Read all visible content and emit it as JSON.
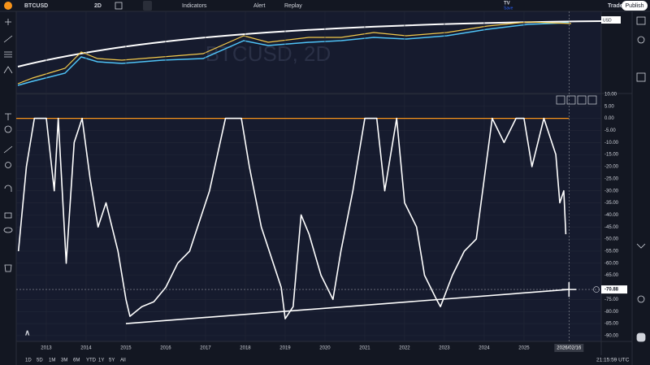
{
  "toolbar": {
    "symbol": "BTCUSD",
    "interval": "2D",
    "indicators": "Indicators",
    "alert": "Alert",
    "replay": "Replay",
    "tv": "TV",
    "save": "Save",
    "trade": "Trade",
    "publish": "Publish"
  },
  "watermark": "BTCUSD, 2D",
  "price_axis_label": "USD",
  "chart_data": {
    "type": "line",
    "xlim": [
      2012.245,
      2026.94
    ],
    "xticks": [
      2013,
      2014,
      2015,
      2016,
      2017,
      2018,
      2019,
      2020,
      2021,
      2022,
      2023,
      2024,
      2025
    ],
    "ylim": [
      -92.4,
      10.3
    ],
    "yticks": [
      {
        "value": 10,
        "label": "10.00"
      },
      {
        "value": 5,
        "label": "5.00"
      },
      {
        "value": 0,
        "label": "0.00"
      },
      {
        "value": -5,
        "label": "-5.00"
      },
      {
        "value": -10,
        "label": "-10.00"
      },
      {
        "value": -15,
        "label": "-15.00"
      },
      {
        "value": -20,
        "label": "-20.00"
      },
      {
        "value": -25,
        "label": "-25.00"
      },
      {
        "value": -30,
        "label": "-30.00"
      },
      {
        "value": -35,
        "label": "-35.00"
      },
      {
        "value": -40,
        "label": "-40.00"
      },
      {
        "value": -45,
        "label": "-45.00"
      },
      {
        "value": -50,
        "label": "-50.00"
      },
      {
        "value": -55,
        "label": "-55.00"
      },
      {
        "value": -60,
        "label": "-60.00"
      },
      {
        "value": -65,
        "label": "-65.00"
      },
      {
        "value": -75,
        "label": "-75.00"
      },
      {
        "value": -80,
        "label": "-80.00"
      },
      {
        "value": -85,
        "label": "-85.00"
      },
      {
        "value": -90,
        "label": "-90.00"
      }
    ],
    "grid": true,
    "series": [
      {
        "color": "#ffffff",
        "x": [
          2012.3,
          2012.5,
          2012.7,
          2013.0,
          2013.2,
          2013.3,
          2013.5,
          2013.7,
          2013.9,
          2014.1,
          2014.3,
          2014.5,
          2014.8,
          2015.0,
          2015.1,
          2015.4,
          2015.7,
          2016.0,
          2016.3,
          2016.6,
          2016.9,
          2017.1,
          2017.3,
          2017.5,
          2017.9,
          2018.1,
          2018.4,
          2018.6,
          2018.9,
          2019.0,
          2019.2,
          2019.4,
          2019.6,
          2019.9,
          2020.2,
          2020.4,
          2020.7,
          2020.9,
          2021.0,
          2021.3,
          2021.5,
          2021.8,
          2022.0,
          2022.3,
          2022.5,
          2022.8,
          2022.9,
          2023.2,
          2023.5,
          2023.8,
          2024.0,
          2024.2,
          2024.5,
          2024.8,
          2025.0,
          2025.2,
          2025.5,
          2025.8,
          2025.9,
          2026.0,
          2026.05
        ],
        "values": [
          -55,
          -20,
          0,
          0,
          -30,
          0,
          -60,
          -10,
          0,
          -25,
          -45,
          -35,
          -55,
          -75,
          -82,
          -78,
          -76,
          -70,
          -60,
          -55,
          -40,
          -30,
          -15,
          0,
          0,
          -20,
          -45,
          -55,
          -70,
          -83,
          -78,
          -40,
          -48,
          -65,
          -75,
          -55,
          -30,
          -10,
          0,
          0,
          -30,
          0,
          -35,
          -45,
          -65,
          -75,
          -78,
          -65,
          -55,
          -50,
          -25,
          0,
          -10,
          0,
          0,
          -20,
          0,
          -15,
          -35,
          -30,
          -48
        ]
      }
    ],
    "hline": {
      "value": 0,
      "color": "#f7931a"
    },
    "trendline": {
      "x": [
        2015.0,
        2026.13
      ],
      "values": [
        -85,
        -70.88
      ],
      "color": "#ffffff"
    },
    "crosshair": {
      "x": 2026.13,
      "x_label": "2026/02/16",
      "value": -70.88,
      "value_label": "-70.88"
    }
  },
  "range_buttons": [
    "1D",
    "5D",
    "1M",
    "3M",
    "6M",
    "YTD",
    "1Y",
    "5Y",
    "All"
  ],
  "clock": "21:15:59 UTC"
}
